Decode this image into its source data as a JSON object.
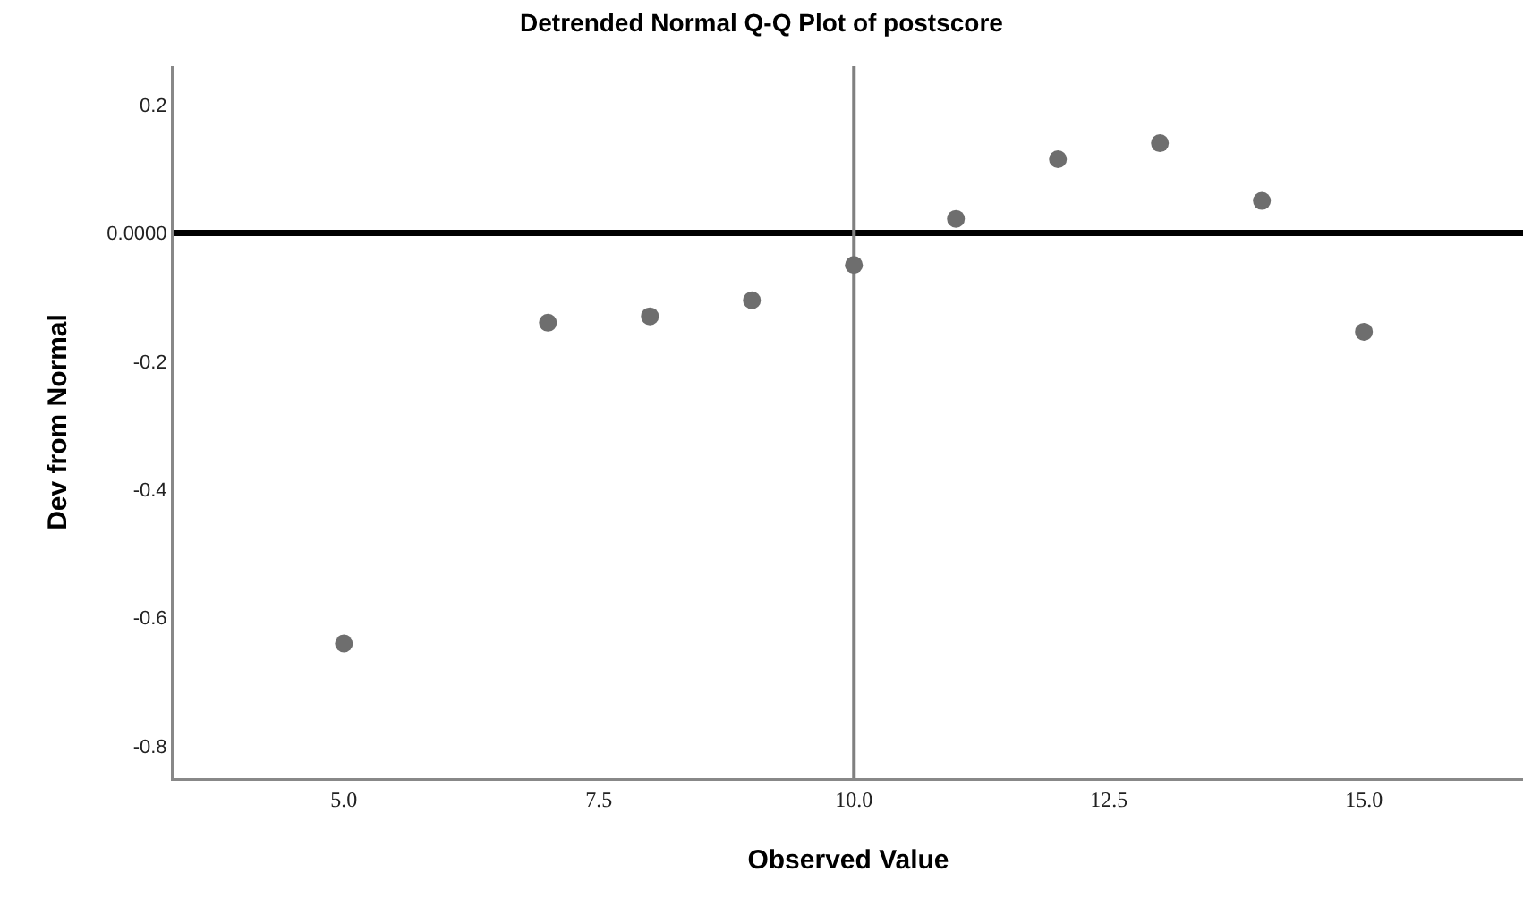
{
  "chart_data": {
    "type": "scatter",
    "title": "Detrended Normal Q-Q Plot of postscore",
    "xlabel": "Observed Value",
    "ylabel": "Dev from Normal",
    "x": [
      5,
      7,
      8,
      9,
      10,
      11,
      12,
      13,
      14,
      15
    ],
    "series": [
      {
        "color": "#6e6e6e",
        "values": [
          -0.64,
          -0.14,
          -0.13,
          -0.105,
          -0.05,
          0.022,
          0.115,
          0.14,
          0.05,
          -0.154
        ]
      }
    ],
    "marker": "circle",
    "grid": false,
    "xlim": [
      3.33,
      16.56
    ],
    "ylim": [
      -0.85,
      0.26
    ],
    "xticks": [
      {
        "value": 5,
        "label": "5.0"
      },
      {
        "value": 7.5,
        "label": "7.5"
      },
      {
        "value": 10,
        "label": "10.0"
      },
      {
        "value": 12.5,
        "label": "12.5"
      },
      {
        "value": 15,
        "label": "15.0"
      }
    ],
    "yticks": [
      0.2,
      {
        "value": 0,
        "label": "0.0000"
      },
      -0.2,
      -0.4,
      -0.6,
      -0.8
    ],
    "ref_lines": [
      {
        "axis": "y",
        "value": 0,
        "color": "#000000"
      },
      {
        "axis": "x",
        "value": 10,
        "color": "#808080"
      }
    ]
  }
}
